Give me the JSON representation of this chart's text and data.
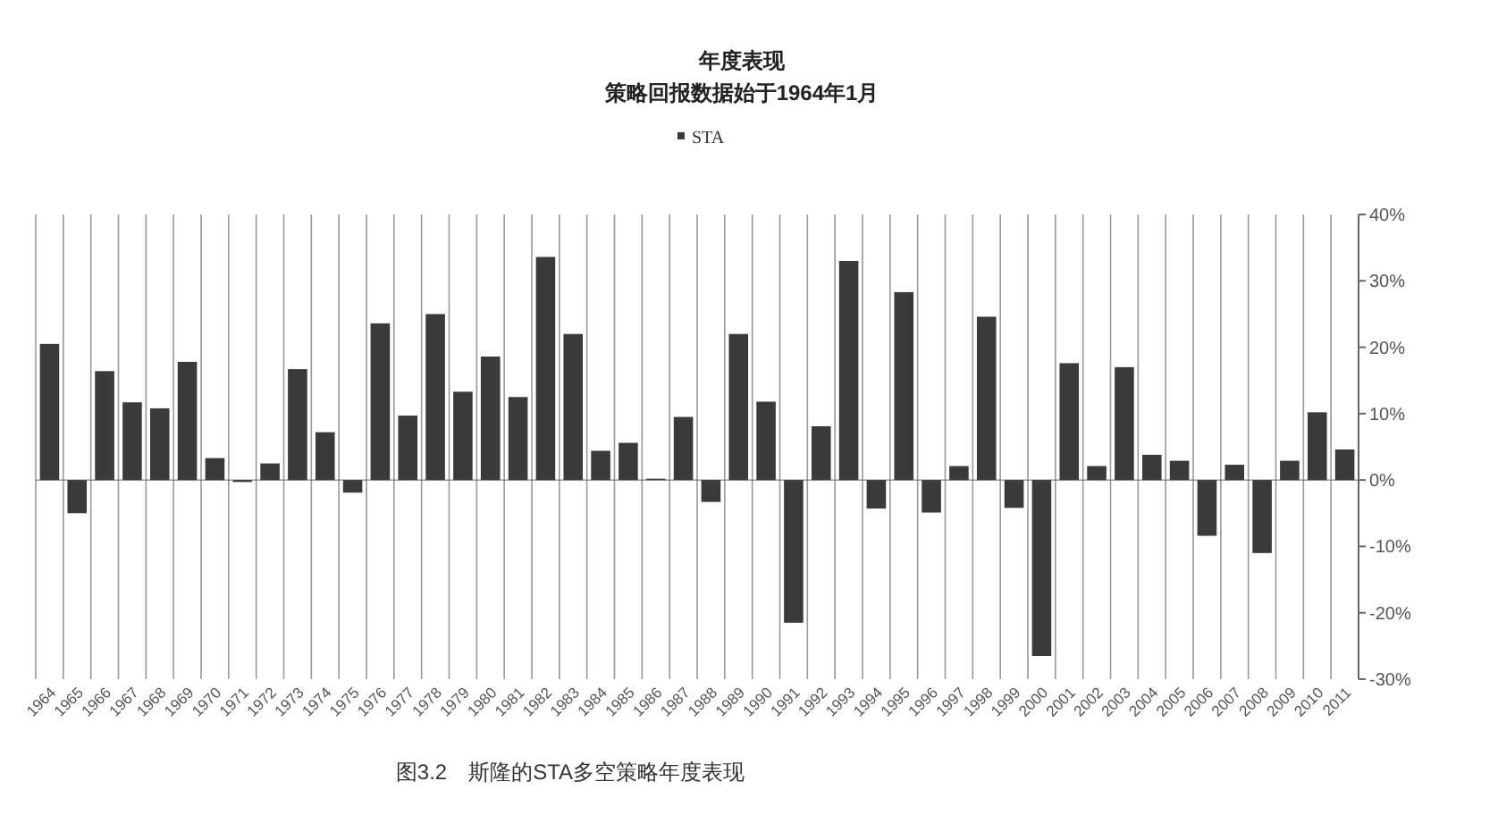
{
  "chart_data": {
    "type": "bar",
    "title": "年度表现",
    "subtitle": "策略回报数据始于1964年1月",
    "categories": [
      "1964",
      "1965",
      "1966",
      "1967",
      "1968",
      "1969",
      "1970",
      "1971",
      "1972",
      "1973",
      "1974",
      "1975",
      "1976",
      "1977",
      "1978",
      "1979",
      "1980",
      "1981",
      "1982",
      "1983",
      "1984",
      "1985",
      "1986",
      "1987",
      "1988",
      "1989",
      "1990",
      "1991",
      "1992",
      "1993",
      "1994",
      "1995",
      "1996",
      "1997",
      "1998",
      "1999",
      "2000",
      "2001",
      "2002",
      "2003",
      "2004",
      "2005",
      "2006",
      "2007",
      "2008",
      "2009",
      "2010",
      "2011"
    ],
    "series": [
      {
        "name": "STA",
        "color": "#3a3a3a",
        "values": [
          20.5,
          -5,
          16.4,
          11.7,
          10.8,
          17.8,
          3.3,
          -0.3,
          2.5,
          16.7,
          7.2,
          -1.9,
          23.6,
          9.7,
          25,
          13.3,
          18.6,
          12.5,
          33.6,
          22,
          4.4,
          5.6,
          0.2,
          9.5,
          -3.3,
          22,
          11.8,
          -21.5,
          8.1,
          33,
          -4.3,
          28.3,
          -4.9,
          2.1,
          24.6,
          -4.2,
          -26.5,
          17.6,
          2.1,
          17,
          3.8,
          2.9,
          -8.4,
          2.3,
          -11,
          2.9,
          10.2,
          4.6
        ]
      }
    ],
    "ylim": [
      -30,
      40
    ],
    "yticks": [
      {
        "value": -30,
        "label": "-30%"
      },
      {
        "value": -20,
        "label": "-20%"
      },
      {
        "value": -10,
        "label": "-10%"
      },
      {
        "value": 0,
        "label": "0%"
      },
      {
        "value": 10,
        "label": "10%"
      },
      {
        "value": 20,
        "label": "20%"
      },
      {
        "value": 30,
        "label": "30%"
      },
      {
        "value": 40,
        "label": "40%"
      }
    ],
    "grid": "x",
    "legend": "top",
    "annotations": [
      "图3.2　斯隆的STA多空策略年度表现"
    ]
  }
}
